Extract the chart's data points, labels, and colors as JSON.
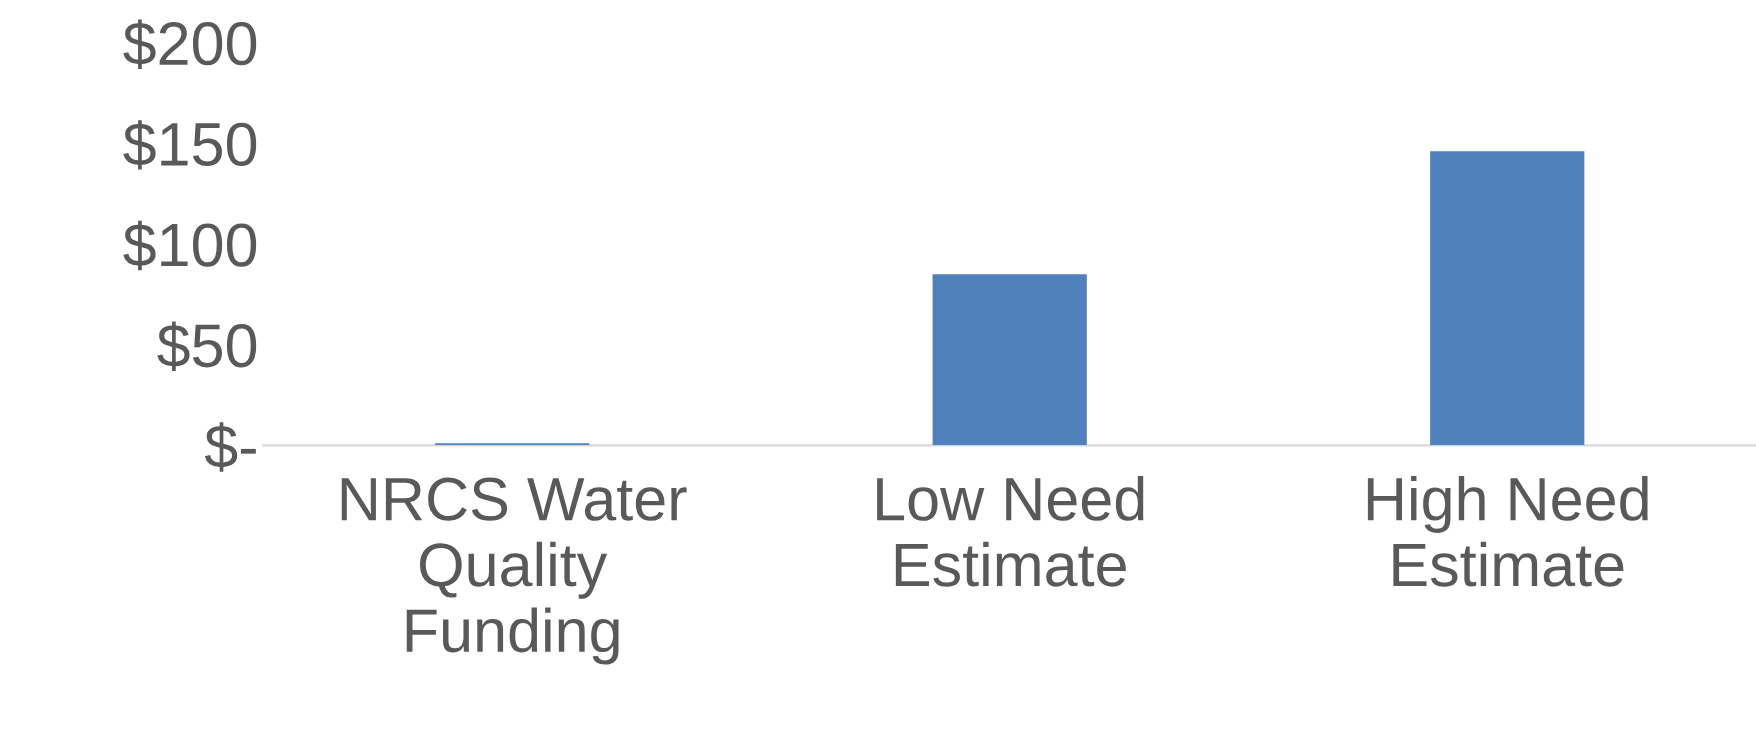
{
  "chart_data": {
    "type": "bar",
    "categories": [
      "NRCS Water\nQuality\nFunding",
      "Low Need\nEstimate",
      "High Need\nEstimate"
    ],
    "values": [
      1,
      85,
      146
    ],
    "color": "#4f81bd",
    "ylim": [
      0,
      200
    ],
    "yticks": [
      {
        "value": 0,
        "label": "$-"
      },
      {
        "value": 50,
        "label": "$50"
      },
      {
        "value": 100,
        "label": "$100"
      },
      {
        "value": 150,
        "label": "$150"
      },
      {
        "value": 200,
        "label": "$200"
      }
    ],
    "grid": false,
    "legend": false
  }
}
